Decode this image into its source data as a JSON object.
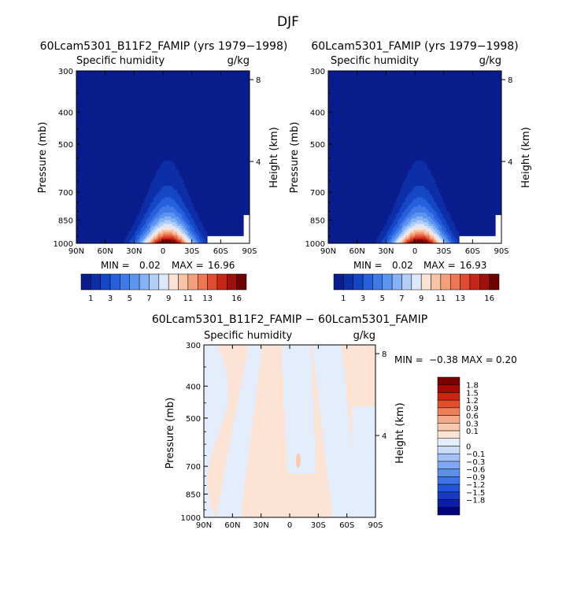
{
  "figure": {
    "title": "DJF"
  },
  "colors": {
    "abs_scale": [
      "#0a1d8c",
      "#0c2fa8",
      "#1446c6",
      "#2660dc",
      "#3f7ae8",
      "#5c95f0",
      "#84b2f5",
      "#b3cff8",
      "#dde9fb",
      "#fbe2d4",
      "#f8c4a6",
      "#f4a07a",
      "#ee7652",
      "#e14c30",
      "#c52617",
      "#9e1009",
      "#6e0303"
    ],
    "diff_scale": [
      "#01047a",
      "#0b1fa0",
      "#153bc0",
      "#2355db",
      "#3d72e8",
      "#5b8ff0",
      "#7ea8f4",
      "#a4c2f7",
      "#cbdcf9",
      "#e3edfb",
      "#fde3d3",
      "#f9c8ae",
      "#f5a988",
      "#f07e58",
      "#e54e2c",
      "#cc2512",
      "#a30a06",
      "#7a0202"
    ]
  },
  "chart_data": [
    {
      "type": "heatmap",
      "title": "60Lcam5301_B11F2_FAMIP (yrs 1979−1998)",
      "subtitle_left": "Specific humidity",
      "subtitle_right": "g/kg",
      "ylabel": "Pressure (mb)",
      "ylabel_right": "Height (km)",
      "x_ticks": [
        "90N",
        "60N",
        "30N",
        "0",
        "30S",
        "60S",
        "90S"
      ],
      "y_ticks": [
        "300",
        "400",
        "500",
        "700",
        "850",
        "1000"
      ],
      "y_ticks_right": [
        "8",
        "4"
      ],
      "min_label": "MIN = ",
      "min_value": "0.02",
      "max_label": "MAX = ",
      "max_value": "16.96",
      "colorbar_labels": [
        "1",
        "3",
        "5",
        "7",
        "9",
        "11",
        "13",
        "16"
      ],
      "peak_latitude": -5,
      "levels": [
        1,
        2,
        3,
        4,
        5,
        6,
        7,
        8,
        9,
        10,
        11,
        12,
        13,
        14,
        15,
        16
      ]
    },
    {
      "type": "heatmap",
      "title": "60Lcam5301_FAMIP (yrs 1979−1998)",
      "subtitle_left": "Specific humidity",
      "subtitle_right": "g/kg",
      "ylabel": "Pressure (mb)",
      "ylabel_right": "Height (km)",
      "x_ticks": [
        "90N",
        "60N",
        "30N",
        "0",
        "30S",
        "60S",
        "90S"
      ],
      "y_ticks": [
        "300",
        "400",
        "500",
        "700",
        "850",
        "1000"
      ],
      "y_ticks_right": [
        "8",
        "4"
      ],
      "min_label": "MIN = ",
      "min_value": "0.02",
      "max_label": "MAX = ",
      "max_value": "16.93",
      "colorbar_labels": [
        "1",
        "3",
        "5",
        "7",
        "9",
        "11",
        "13",
        "16"
      ],
      "peak_latitude": -5,
      "levels": [
        1,
        2,
        3,
        4,
        5,
        6,
        7,
        8,
        9,
        10,
        11,
        12,
        13,
        14,
        15,
        16
      ]
    },
    {
      "type": "heatmap",
      "title": "60Lcam5301_B11F2_FAMIP − 60Lcam5301_FAMIP",
      "subtitle_left": "Specific humidity",
      "subtitle_right": "g/kg",
      "ylabel": "Pressure (mb)",
      "ylabel_right": "Height (km)",
      "x_ticks": [
        "90N",
        "60N",
        "30N",
        "0",
        "30S",
        "60S",
        "90S"
      ],
      "y_ticks": [
        "300",
        "400",
        "500",
        "700",
        "850",
        "1000"
      ],
      "y_ticks_right": [
        "8",
        "4"
      ],
      "min_label": "MIN = ",
      "min_value": "−0.38",
      "max_label": "MAX = ",
      "max_value": "0.20",
      "colorbar_labels": [
        "1.8",
        "1.5",
        "1.2",
        "0.9",
        "0.6",
        "0.3",
        "0.1",
        "0",
        "−0.1",
        "−0.3",
        "−0.6",
        "−0.9",
        "−1.2",
        "−1.5",
        "−1.8"
      ]
    }
  ]
}
